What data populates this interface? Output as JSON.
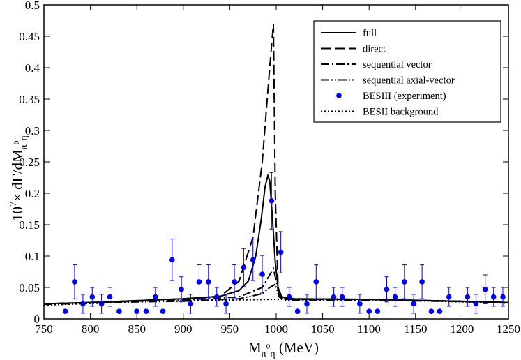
{
  "chart_data": {
    "type": "line",
    "xlabel_parts": [
      "M",
      "π",
      "0",
      "η",
      " (MeV)"
    ],
    "ylabel_parts": [
      "10",
      "7",
      "× dΓ/dM",
      "π",
      "0",
      "η"
    ],
    "xlim": [
      750,
      1250
    ],
    "ylim": [
      0,
      0.5
    ],
    "xticks": [
      750,
      800,
      850,
      900,
      950,
      1000,
      1050,
      1100,
      1150,
      1200,
      1250
    ],
    "yticks": [
      0,
      0.05,
      0.1,
      0.15,
      0.2,
      0.25,
      0.3,
      0.35,
      0.4,
      0.45,
      0.5
    ],
    "legend": "top-right",
    "series": [
      {
        "name": "full",
        "type": "line",
        "dash": "solid",
        "color": "#000000",
        "x": [
          750,
          800,
          850,
          900,
          940,
          960,
          970,
          978,
          984,
          988,
          991,
          993,
          996,
          999,
          1002,
          1006,
          1020,
          1100,
          1200,
          1250
        ],
        "values": [
          0.024,
          0.026,
          0.029,
          0.032,
          0.036,
          0.045,
          0.06,
          0.1,
          0.16,
          0.21,
          0.228,
          0.22,
          0.16,
          0.09,
          0.05,
          0.035,
          0.032,
          0.031,
          0.028,
          0.026
        ]
      },
      {
        "name": "direct",
        "type": "line",
        "dash": "dash",
        "color": "#000000",
        "x": [
          750,
          800,
          850,
          900,
          940,
          960,
          975,
          985,
          993,
          997,
          999,
          1002,
          1005,
          1100,
          1200,
          1250
        ],
        "values": [
          0.024,
          0.026,
          0.029,
          0.032,
          0.036,
          0.06,
          0.13,
          0.25,
          0.4,
          0.47,
          0.2,
          0.05,
          0.032,
          0.031,
          0.028,
          0.026
        ]
      },
      {
        "name": "sequential vector",
        "type": "line",
        "dash": "dashdot",
        "color": "#000000",
        "x": [
          750,
          850,
          900,
          960,
          985,
          993,
          997,
          1000,
          1003,
          1010,
          1100,
          1250
        ],
        "values": [
          0.024,
          0.028,
          0.03,
          0.035,
          0.05,
          0.07,
          0.08,
          0.06,
          0.04,
          0.031,
          0.031,
          0.026
        ]
      },
      {
        "name": "sequential axial-vector",
        "type": "line",
        "dash": "dashdotdot",
        "color": "#000000",
        "x": [
          750,
          850,
          900,
          960,
          985,
          993,
          999,
          1003,
          1010,
          1100,
          1250
        ],
        "values": [
          0.023,
          0.027,
          0.028,
          0.032,
          0.04,
          0.05,
          0.055,
          0.035,
          0.03,
          0.03,
          0.026
        ]
      },
      {
        "name": "BESIII (experiment)",
        "type": "scatter",
        "color": "#0000ff",
        "x": [
          773,
          783,
          792,
          802,
          812,
          821,
          831,
          850,
          860,
          870,
          878,
          888,
          898,
          908,
          917,
          927,
          936,
          946,
          955,
          965,
          975,
          985,
          995,
          1005,
          1014,
          1023,
          1033,
          1043,
          1062,
          1071,
          1090,
          1100,
          1109,
          1119,
          1128,
          1138,
          1148,
          1157,
          1167,
          1176,
          1186,
          1206,
          1215,
          1225,
          1234,
          1244
        ],
        "values": [
          0.012,
          0.059,
          0.024,
          0.035,
          0.024,
          0.035,
          0.012,
          0.012,
          0.012,
          0.035,
          0.012,
          0.094,
          0.047,
          0.024,
          0.059,
          0.059,
          0.035,
          0.024,
          0.059,
          0.082,
          0.094,
          0.071,
          0.188,
          0.106,
          0.035,
          0.012,
          0.024,
          0.059,
          0.035,
          0.035,
          0.024,
          0.012,
          0.012,
          0.047,
          0.035,
          0.059,
          0.024,
          0.059,
          0.012,
          0.012,
          0.035,
          0.035,
          0.024,
          0.047,
          0.035,
          0.035
        ],
        "errors": [
          0,
          0.027,
          0.015,
          0.015,
          0.015,
          0.015,
          0,
          0,
          0,
          0.015,
          0,
          0.033,
          0.02,
          0.015,
          0.027,
          0.027,
          0.015,
          0.015,
          0.027,
          0.03,
          0.033,
          0.03,
          0.045,
          0.033,
          0.015,
          0,
          0.015,
          0.027,
          0.015,
          0.015,
          0.015,
          0,
          0,
          0.02,
          0.015,
          0.027,
          0.015,
          0.027,
          0,
          0,
          0.015,
          0.015,
          0.015,
          0.023,
          0.015,
          0.015
        ]
      },
      {
        "name": "BESII background",
        "type": "line",
        "dash": "dot",
        "color": "#000000",
        "x": [
          750,
          850,
          950,
          1000,
          1100,
          1250
        ],
        "values": [
          0.022,
          0.027,
          0.03,
          0.031,
          0.031,
          0.025
        ]
      }
    ]
  }
}
